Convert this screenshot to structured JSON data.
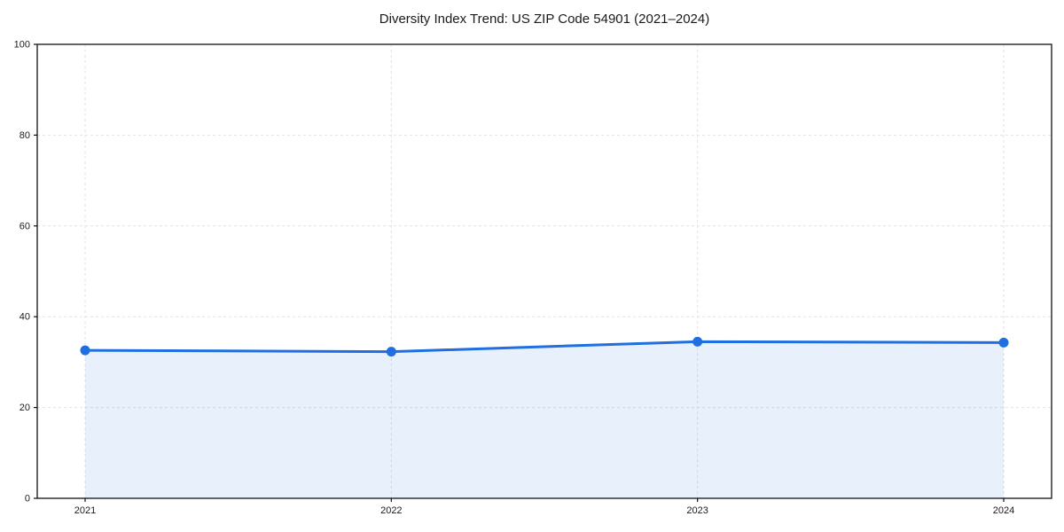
{
  "figure": {
    "background": "#ffffff"
  },
  "chart_data": {
    "type": "area",
    "title": "Diversity Index Trend: US ZIP Code 54901 (2021–2024)",
    "series_name": "Diversity Index",
    "categories": [
      "2021",
      "2022",
      "2023",
      "2024"
    ],
    "values": [
      32.6,
      32.3,
      34.5,
      34.3
    ],
    "xlabel": "",
    "ylabel": "",
    "ylim": [
      0,
      100
    ],
    "yticks": [
      0,
      20,
      40,
      60,
      80,
      100
    ],
    "grid": true,
    "grid_style": "dashed",
    "legend_position": "none",
    "line_color": "#1f6fe0",
    "fill_color": "rgba(31,111,224,0.10)",
    "grid_color": "#e2e2e2",
    "axis_color": "#111111",
    "text_color": "#1a1a1a"
  }
}
